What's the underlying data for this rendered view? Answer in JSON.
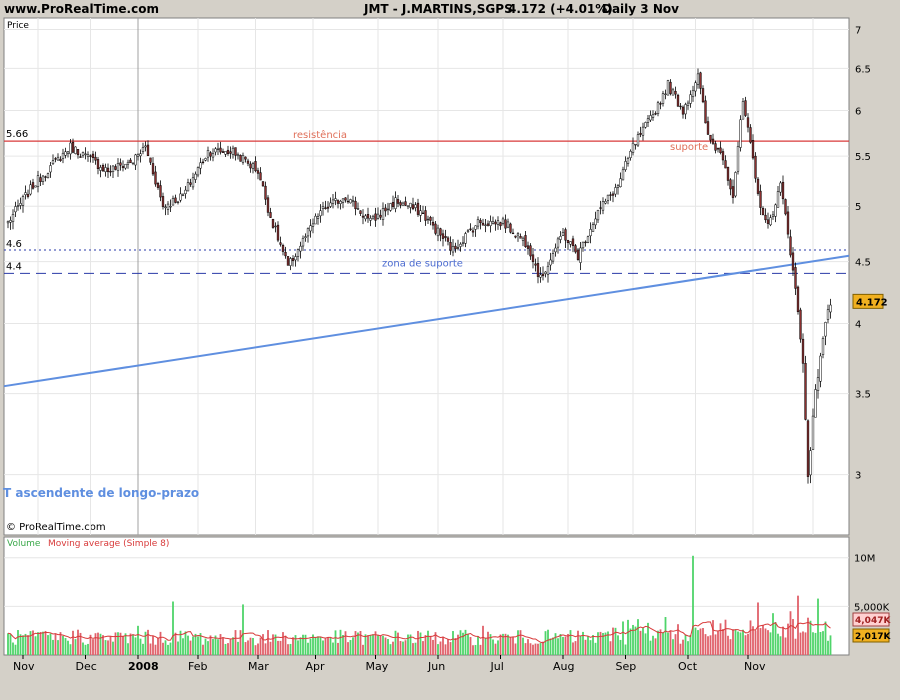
{
  "header": {
    "site": "www.ProRealTime.com",
    "instrument": "JMT - J.MARTINS,SGPS",
    "last": "4.172 (+4.01%)",
    "period": "Daily 3 Nov"
  },
  "price_panel": {
    "label": "Price",
    "copyright": "© ProRealTime.com",
    "last_tag": "4.172",
    "annotations": {
      "resistance": "resistência",
      "support": "suporte",
      "support_zone": "zona de suporte",
      "trendline": "T ascendente de longo-prazo",
      "level_566": "5.66",
      "level_46": "4.6",
      "level_44": "4.4"
    }
  },
  "volume_panel": {
    "label_volume": "Volume",
    "label_ma": "Moving average (Simple 8)",
    "tag_ma": "4,047K",
    "tag_vol": "2,017K"
  },
  "colors": {
    "up": "#ffffff",
    "down": "#8b2f2f",
    "resistance": "#d83a3a",
    "trend": "#5f8fe0",
    "zone": "#2a3aa8",
    "vol_up": "#4fd46a",
    "vol_down": "#e0606a",
    "ma": "#d83a3a"
  },
  "chart_data": {
    "type": "candlestick",
    "y_axis": {
      "min": 2.7,
      "max": 7.1,
      "ticks": [
        3,
        3.5,
        4,
        4.5,
        5,
        5.5,
        6,
        6.5,
        7
      ],
      "scale": "log"
    },
    "x_axis_labels": [
      "Nov",
      "Dec",
      "2008",
      "Feb",
      "Mar",
      "Apr",
      "May",
      "Jun",
      "Jul",
      "Aug",
      "Sep",
      "Oct",
      "Nov"
    ],
    "horizontal_levels": [
      {
        "name": "resistência",
        "value": 5.66
      },
      {
        "name": "level-4.6",
        "value": 4.6
      },
      {
        "name": "zona de suporte",
        "value": 4.4
      }
    ],
    "trendline": {
      "label": "T ascendente de longo-prazo",
      "start": 3.55,
      "end": 4.55
    },
    "close_anchors": [
      [
        0,
        4.85
      ],
      [
        10,
        5.2
      ],
      [
        25,
        5.6
      ],
      [
        40,
        5.35
      ],
      [
        50,
        5.45
      ],
      [
        55,
        5.6
      ],
      [
        62,
        5.0
      ],
      [
        70,
        5.1
      ],
      [
        80,
        5.55
      ],
      [
        90,
        5.55
      ],
      [
        100,
        5.35
      ],
      [
        105,
        4.9
      ],
      [
        112,
        4.45
      ],
      [
        125,
        4.95
      ],
      [
        135,
        5.1
      ],
      [
        145,
        4.85
      ],
      [
        155,
        5.05
      ],
      [
        165,
        4.95
      ],
      [
        178,
        4.6
      ],
      [
        188,
        4.85
      ],
      [
        198,
        4.85
      ],
      [
        208,
        4.65
      ],
      [
        213,
        4.35
      ],
      [
        222,
        4.75
      ],
      [
        228,
        4.55
      ],
      [
        236,
        4.95
      ],
      [
        244,
        5.2
      ],
      [
        250,
        5.6
      ],
      [
        258,
        5.95
      ],
      [
        264,
        6.3
      ],
      [
        270,
        6.0
      ],
      [
        276,
        6.4
      ],
      [
        280,
        5.7
      ],
      [
        286,
        5.5
      ],
      [
        290,
        5.1
      ],
      [
        294,
        6.1
      ],
      [
        300,
        5.1
      ],
      [
        304,
        4.8
      ],
      [
        309,
        5.2
      ],
      [
        314,
        4.45
      ],
      [
        318,
        3.7
      ],
      [
        320,
        3.0
      ],
      [
        323,
        3.5
      ],
      [
        326,
        3.9
      ],
      [
        329,
        4.17
      ]
    ],
    "volume": {
      "y_max": 11,
      "labels": [
        "10M",
        "5,000K"
      ],
      "ma_last": 4.047,
      "last": 2.017
    }
  }
}
